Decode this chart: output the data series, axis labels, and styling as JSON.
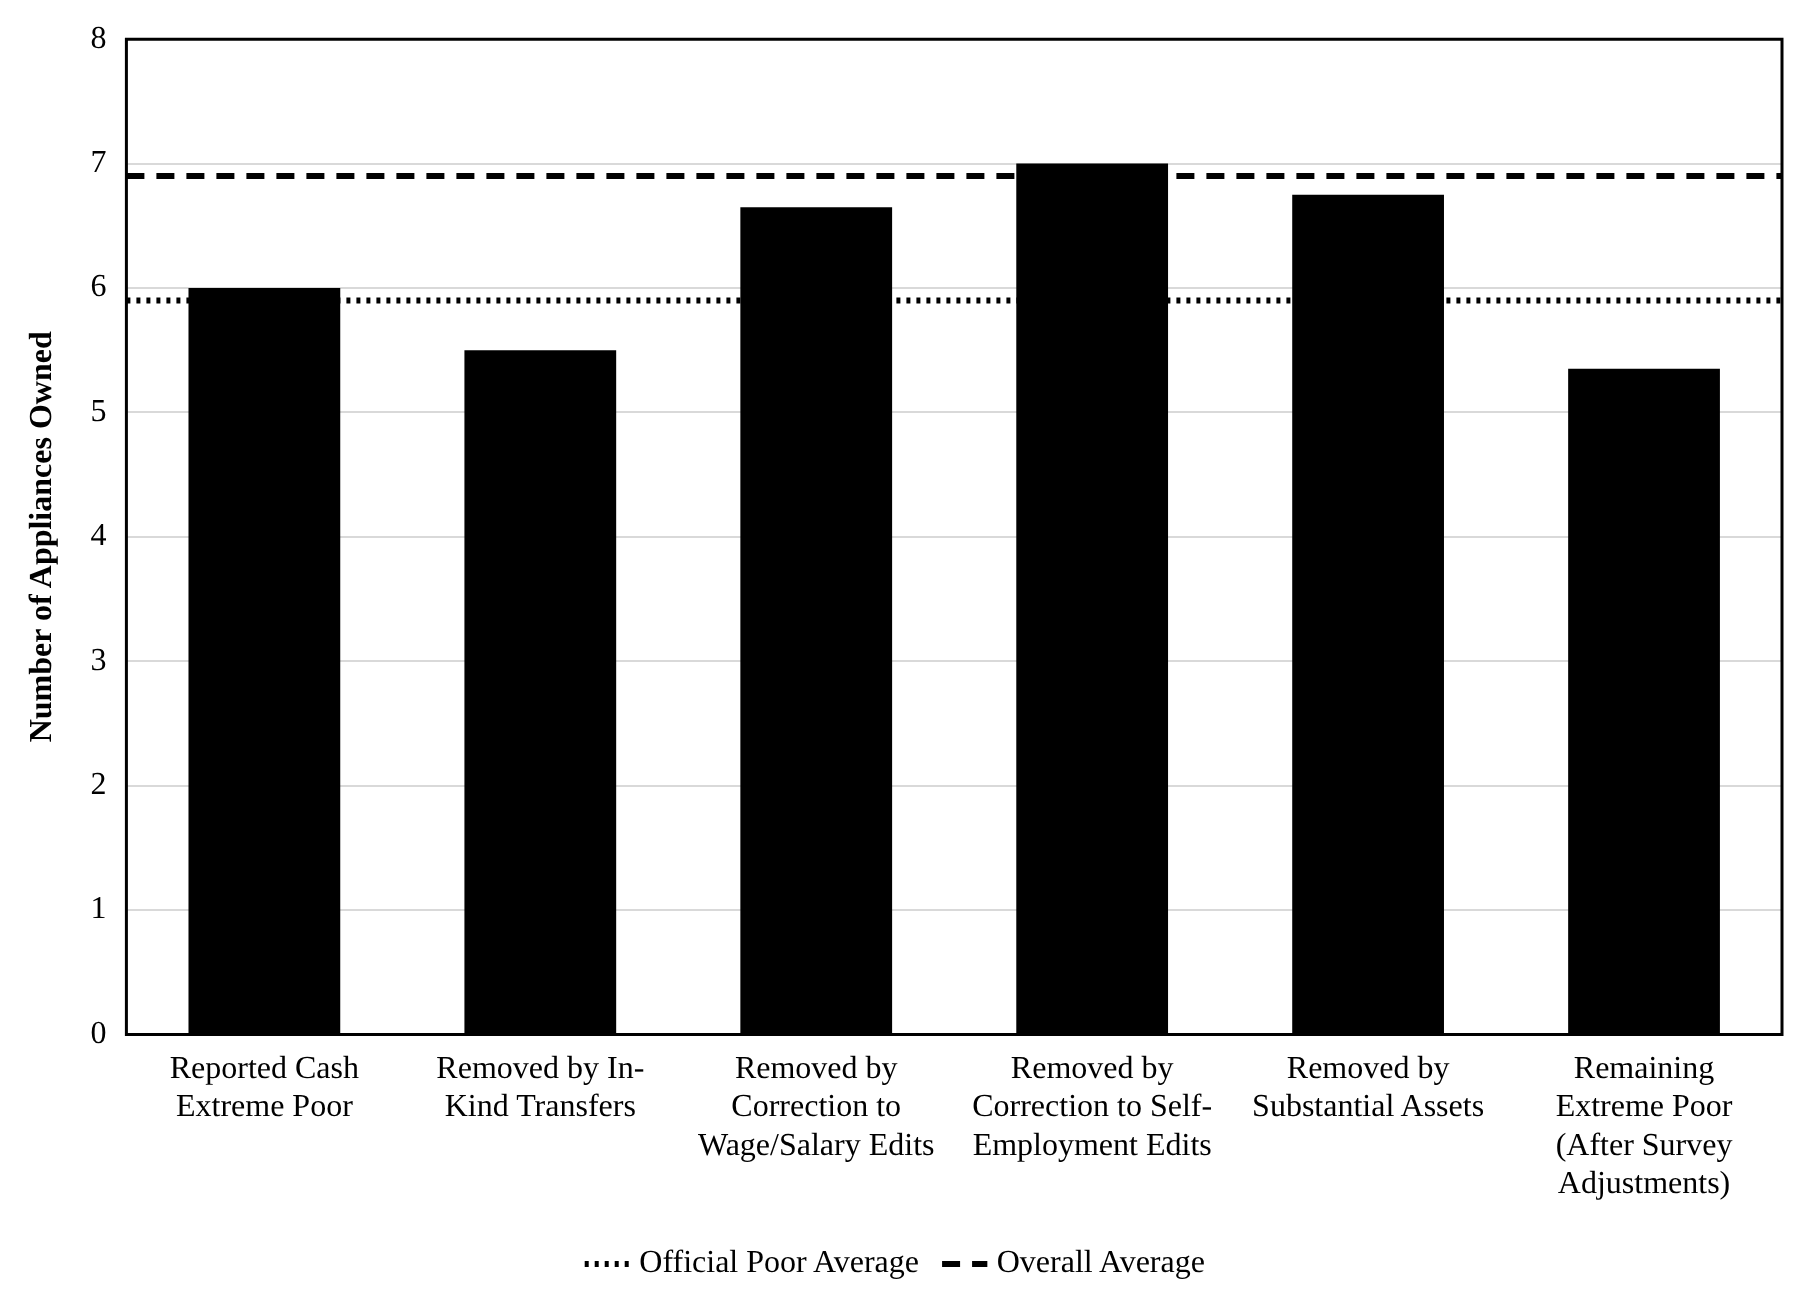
{
  "chart_data": {
    "type": "bar",
    "ylabel": "Number of Appliances Owned",
    "categories": [
      "Reported Cash Extreme Poor",
      "Removed by In-Kind Transfers",
      "Removed by Correction to Wage/Salary Edits",
      "Removed by Correction to Self-Employment Edits",
      "Removed by Substantial Assets",
      "Remaining Extreme Poor (After Survey Adjustments)"
    ],
    "values": [
      6.0,
      5.5,
      6.65,
      7.0,
      6.75,
      5.35
    ],
    "color": "#000000",
    "ylim": [
      0,
      8
    ],
    "yticks": [
      0,
      1,
      2,
      3,
      4,
      5,
      6,
      7,
      8
    ],
    "grid": "y",
    "legend": "bottom",
    "ref_lines": [
      {
        "axis": "y",
        "value": 5.9,
        "label": "Official Poor Average",
        "line_style": "dotted",
        "color": "#000000"
      },
      {
        "axis": "y",
        "value": 6.9,
        "label": "Overall Average",
        "line_style": "dashed",
        "color": "#000000"
      }
    ]
  }
}
